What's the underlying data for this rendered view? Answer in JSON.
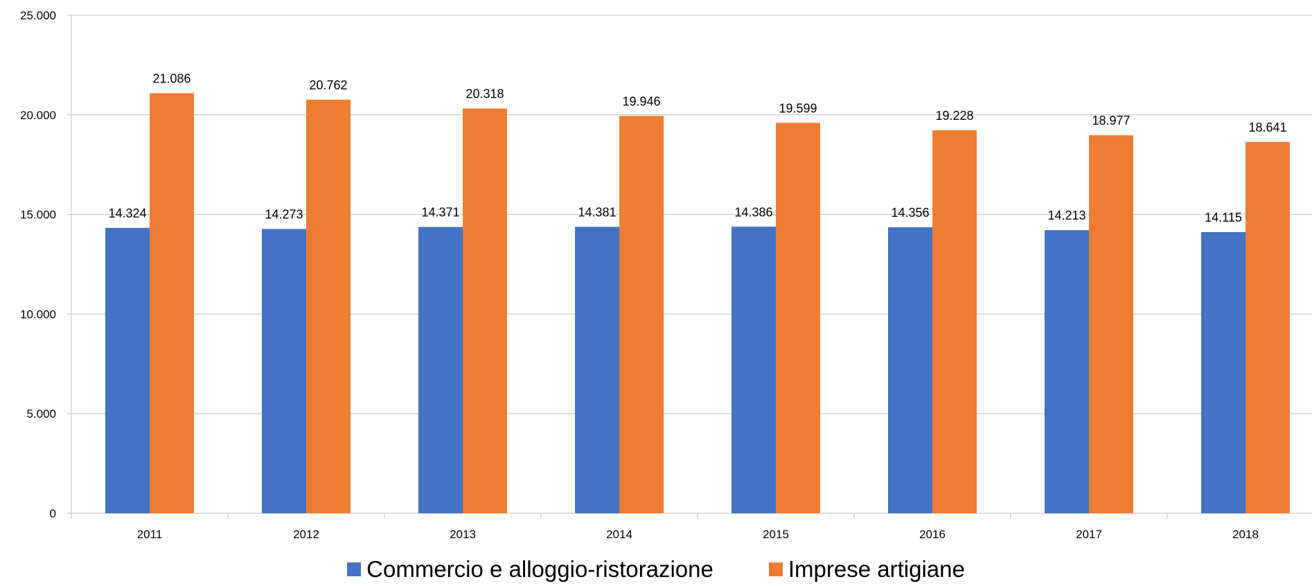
{
  "chart_data": {
    "type": "bar",
    "categories": [
      "2011",
      "2012",
      "2013",
      "2014",
      "2015",
      "2016",
      "2017",
      "2018"
    ],
    "series": [
      {
        "name": "Commercio e alloggio-ristorazione",
        "color": "#4472C4",
        "values": [
          14324,
          14273,
          14371,
          14381,
          14386,
          14356,
          14213,
          14115
        ],
        "labels": [
          "14.324",
          "14.273",
          "14.371",
          "14.381",
          "14.386",
          "14.356",
          "14.213",
          "14.115"
        ]
      },
      {
        "name": "Imprese artigiane",
        "color": "#ED7D31",
        "values": [
          21086,
          20762,
          20318,
          19946,
          19599,
          19228,
          18977,
          18641
        ],
        "labels": [
          "21.086",
          "20.762",
          "20.318",
          "19.946",
          "19.599",
          "19.228",
          "18.977",
          "18.641"
        ]
      }
    ],
    "ylim": [
      0,
      25000
    ],
    "yticks": [
      0,
      5000,
      10000,
      15000,
      20000,
      25000
    ],
    "ytick_labels": [
      "0",
      "5.000",
      "10.000",
      "15.000",
      "20.000",
      "25.000"
    ],
    "grid": true,
    "legend_position": "bottom"
  }
}
